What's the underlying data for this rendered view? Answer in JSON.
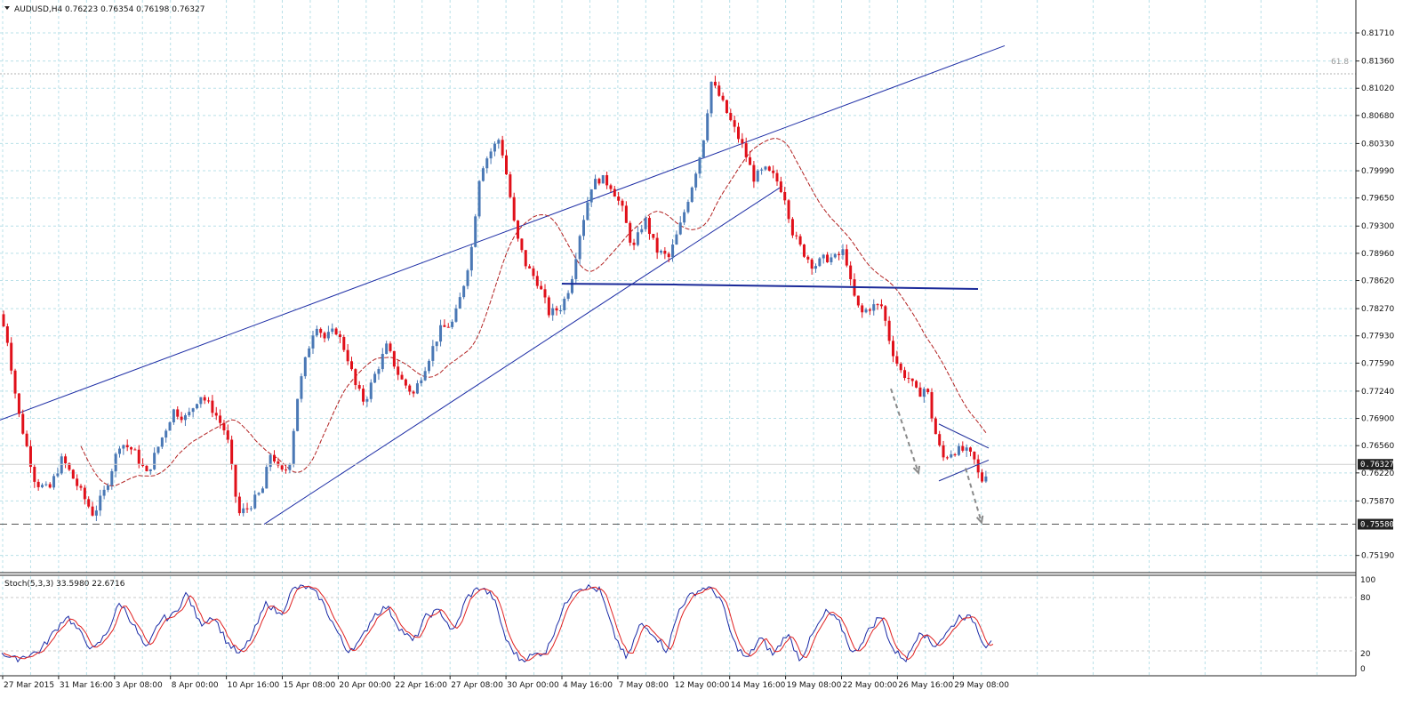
{
  "window": {
    "menu_arrow_icon": "triangle-down-icon"
  },
  "header": {
    "symbol": "AUDUSD,H4",
    "ohlc": "0.76223 0.76354 0.76198 0.76327"
  },
  "colors": {
    "bull": "#4a78b5",
    "bear": "#e0101a",
    "ma": "#b22222",
    "channel": "#1f2fa6",
    "support": "#1a2a99",
    "grid": "#b8e0e8",
    "stoch_main": "#1a2aa6",
    "stoch_signal": "#e02020",
    "arrow": "#8a8a8a"
  },
  "stoch": {
    "title": "Stoch(5,3,3) 33.5980 22.6716",
    "axis_labels": [
      "100",
      "80",
      "20",
      "0"
    ]
  },
  "chart_data": {
    "type": "candlestick",
    "title": "AUDUSD,H4",
    "ylim": [
      0.7502,
      0.8201
    ],
    "y_ticks": [
      "0.81710",
      "0.81360",
      "0.81020",
      "0.80680",
      "0.80330",
      "0.79990",
      "0.79650",
      "0.79300",
      "0.78960",
      "0.78620",
      "0.78270",
      "0.77930",
      "0.77590",
      "0.77240",
      "0.76900",
      "0.76560",
      "0.76220",
      "0.75870",
      "0.75190"
    ],
    "x_ticks": [
      "27 Mar 2015",
      "31 Mar 16:00",
      "3 Apr 08:00",
      "8 Apr 00:00",
      "10 Apr 16:00",
      "15 Apr 08:00",
      "20 Apr 00:00",
      "22 Apr 16:00",
      "27 Apr 08:00",
      "30 Apr 00:00",
      "4 May 16:00",
      "7 May 08:00",
      "12 May 00:00",
      "14 May 16:00",
      "19 May 08:00",
      "22 May 00:00",
      "26 May 16:00",
      "29 May 08:00"
    ],
    "grid": true,
    "current_price": "0.76327",
    "support_price": "0.75580",
    "fib_label": "61.8",
    "fib_level": 0.812,
    "horizontal_level": 0.7857,
    "price_path": [
      [
        0,
        0.782
      ],
      [
        8,
        0.779
      ],
      [
        20,
        0.77
      ],
      [
        40,
        0.761
      ],
      [
        55,
        0.76
      ],
      [
        70,
        0.764
      ],
      [
        90,
        0.76
      ],
      [
        105,
        0.757
      ],
      [
        118,
        0.76
      ],
      [
        135,
        0.766
      ],
      [
        150,
        0.765
      ],
      [
        165,
        0.762
      ],
      [
        180,
        0.766
      ],
      [
        195,
        0.77
      ],
      [
        210,
        0.769
      ],
      [
        225,
        0.772
      ],
      [
        240,
        0.77
      ],
      [
        255,
        0.767
      ],
      [
        268,
        0.757
      ],
      [
        280,
        0.758
      ],
      [
        295,
        0.76
      ],
      [
        305,
        0.765
      ],
      [
        315,
        0.762
      ],
      [
        325,
        0.763
      ],
      [
        335,
        0.772
      ],
      [
        345,
        0.777
      ],
      [
        355,
        0.781
      ],
      [
        365,
        0.779
      ],
      [
        378,
        0.78
      ],
      [
        390,
        0.777
      ],
      [
        400,
        0.773
      ],
      [
        410,
        0.771
      ],
      [
        420,
        0.774
      ],
      [
        435,
        0.778
      ],
      [
        450,
        0.774
      ],
      [
        465,
        0.772
      ],
      [
        480,
        0.776
      ],
      [
        495,
        0.78
      ],
      [
        510,
        0.781
      ],
      [
        520,
        0.785
      ],
      [
        530,
        0.79
      ],
      [
        540,
        0.8
      ],
      [
        550,
        0.802
      ],
      [
        562,
        0.804
      ],
      [
        572,
        0.798
      ],
      [
        580,
        0.792
      ],
      [
        592,
        0.788
      ],
      [
        605,
        0.786
      ],
      [
        618,
        0.782
      ],
      [
        632,
        0.783
      ],
      [
        642,
        0.786
      ],
      [
        652,
        0.792
      ],
      [
        665,
        0.798
      ],
      [
        675,
        0.799
      ],
      [
        688,
        0.798
      ],
      [
        700,
        0.795
      ],
      [
        712,
        0.79
      ],
      [
        725,
        0.794
      ],
      [
        738,
        0.79
      ],
      [
        752,
        0.789
      ],
      [
        765,
        0.793
      ],
      [
        778,
        0.798
      ],
      [
        790,
        0.803
      ],
      [
        800,
        0.811
      ],
      [
        810,
        0.809
      ],
      [
        822,
        0.806
      ],
      [
        835,
        0.803
      ],
      [
        848,
        0.799
      ],
      [
        860,
        0.8
      ],
      [
        872,
        0.799
      ],
      [
        882,
        0.797
      ],
      [
        892,
        0.792
      ],
      [
        902,
        0.79
      ],
      [
        915,
        0.788
      ],
      [
        928,
        0.789
      ],
      [
        940,
        0.789
      ],
      [
        950,
        0.79
      ],
      [
        958,
        0.785
      ],
      [
        968,
        0.782
      ],
      [
        980,
        0.783
      ],
      [
        992,
        0.783
      ],
      [
        1002,
        0.778
      ],
      [
        1012,
        0.775
      ],
      [
        1022,
        0.774
      ],
      [
        1032,
        0.772
      ],
      [
        1042,
        0.773
      ],
      [
        1050,
        0.768
      ],
      [
        1060,
        0.764
      ],
      [
        1072,
        0.765
      ],
      [
        1085,
        0.765
      ],
      [
        1095,
        0.764
      ],
      [
        1103,
        0.761
      ],
      [
        1108,
        0.762
      ],
      [
        1113,
        0.7633
      ]
    ],
    "stoch_path": [
      [
        0,
        20
      ],
      [
        15,
        10
      ],
      [
        30,
        15
      ],
      [
        45,
        20
      ],
      [
        60,
        40
      ],
      [
        75,
        60
      ],
      [
        90,
        40
      ],
      [
        105,
        20
      ],
      [
        120,
        40
      ],
      [
        135,
        75
      ],
      [
        150,
        50
      ],
      [
        165,
        20
      ],
      [
        180,
        55
      ],
      [
        195,
        60
      ],
      [
        210,
        85
      ],
      [
        225,
        50
      ],
      [
        240,
        60
      ],
      [
        255,
        30
      ],
      [
        270,
        15
      ],
      [
        285,
        40
      ],
      [
        300,
        75
      ],
      [
        315,
        60
      ],
      [
        330,
        90
      ],
      [
        345,
        92
      ],
      [
        360,
        80
      ],
      [
        375,
        50
      ],
      [
        390,
        20
      ],
      [
        405,
        30
      ],
      [
        420,
        60
      ],
      [
        435,
        70
      ],
      [
        450,
        45
      ],
      [
        465,
        30
      ],
      [
        480,
        60
      ],
      [
        495,
        65
      ],
      [
        510,
        40
      ],
      [
        525,
        80
      ],
      [
        540,
        92
      ],
      [
        555,
        80
      ],
      [
        570,
        30
      ],
      [
        585,
        10
      ],
      [
        600,
        15
      ],
      [
        615,
        20
      ],
      [
        630,
        60
      ],
      [
        645,
        90
      ],
      [
        660,
        92
      ],
      [
        675,
        88
      ],
      [
        690,
        40
      ],
      [
        705,
        10
      ],
      [
        720,
        50
      ],
      [
        735,
        40
      ],
      [
        750,
        20
      ],
      [
        765,
        70
      ],
      [
        780,
        85
      ],
      [
        795,
        92
      ],
      [
        810,
        80
      ],
      [
        825,
        30
      ],
      [
        840,
        10
      ],
      [
        855,
        35
      ],
      [
        870,
        15
      ],
      [
        885,
        40
      ],
      [
        900,
        10
      ],
      [
        915,
        40
      ],
      [
        930,
        65
      ],
      [
        945,
        50
      ],
      [
        960,
        15
      ],
      [
        975,
        40
      ],
      [
        990,
        60
      ],
      [
        1005,
        20
      ],
      [
        1020,
        10
      ],
      [
        1035,
        45
      ],
      [
        1050,
        25
      ],
      [
        1065,
        40
      ],
      [
        1080,
        60
      ],
      [
        1095,
        55
      ],
      [
        1108,
        25
      ],
      [
        1115,
        34
      ]
    ]
  }
}
